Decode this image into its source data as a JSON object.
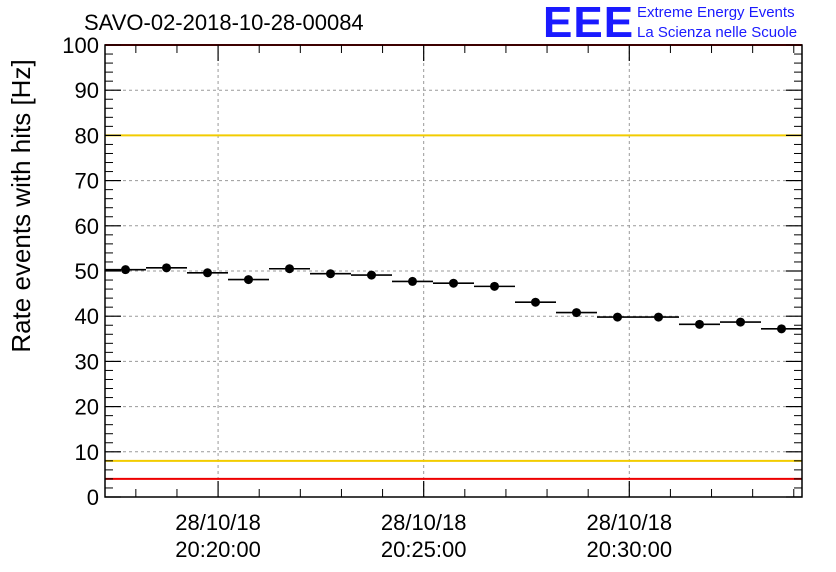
{
  "chart_data": {
    "type": "scatter",
    "title": "SAVO-02-2018-10-28-00084",
    "ylabel": "Rate events with hits [Hz]",
    "xlabel": "",
    "ylim": [
      0,
      100
    ],
    "y_ticks": [
      "0",
      "10",
      "20",
      "30",
      "40",
      "50",
      "60",
      "70",
      "80",
      "90",
      "100"
    ],
    "x_ticks": [
      {
        "date": "28/10/18",
        "time": "20:20:00"
      },
      {
        "date": "28/10/18",
        "time": "20:25:00"
      },
      {
        "date": "28/10/18",
        "time": "20:30:00"
      }
    ],
    "series": [
      {
        "name": "rate",
        "values": [
          50.3,
          50.7,
          49.6,
          48.1,
          50.5,
          49.4,
          49.1,
          47.7,
          47.3,
          46.6,
          43.1,
          40.8,
          39.8,
          39.8,
          38.2,
          38.7,
          37.2
        ]
      }
    ],
    "reference_lines": [
      {
        "name": "upper-warning",
        "value": 80,
        "color": "#f2cc00"
      },
      {
        "name": "lower-warning",
        "value": 8,
        "color": "#f2cc00"
      },
      {
        "name": "upper-limit",
        "value": 100,
        "color": "#ee0000"
      },
      {
        "name": "lower-limit",
        "value": 4,
        "color": "#ee0000"
      }
    ],
    "grid": true
  },
  "logo": {
    "mark": "EEE",
    "line1": "Extreme Energy Events",
    "line2": "La Scienza nelle Scuole"
  }
}
